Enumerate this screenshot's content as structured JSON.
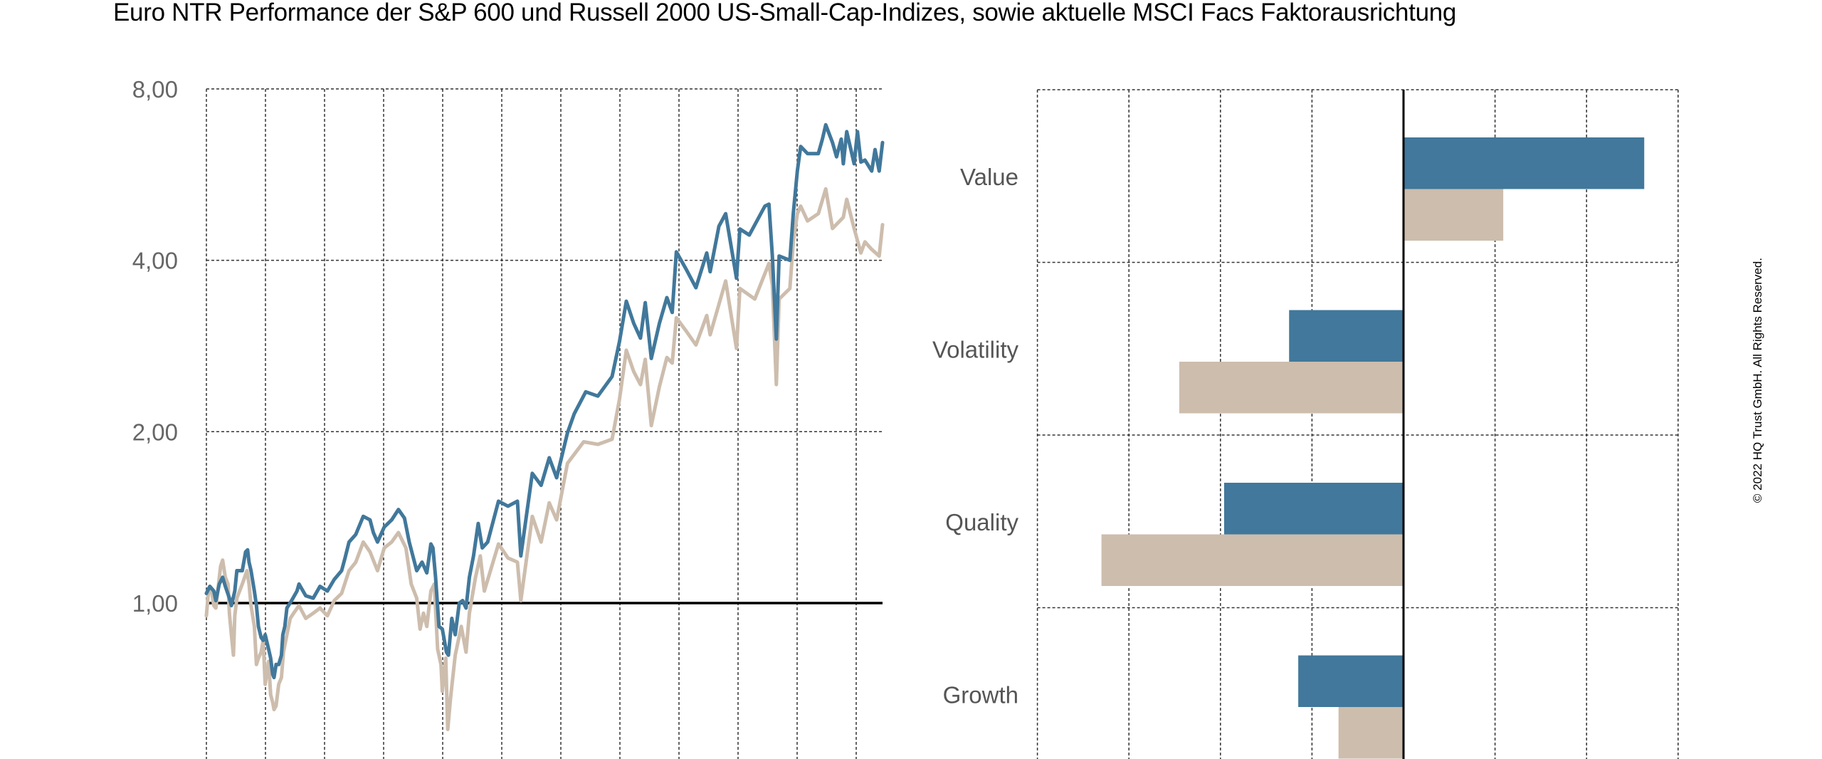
{
  "title": "Euro NTR Performance der S&P 600 und Russell 2000 US-Small-Cap-Indizes, sowie aktuelle MSCI Facs Faktorausrichtung",
  "copyright": "© 2022 HQ Trust GmbH. All Rights Reserved.",
  "colors": {
    "series_blue": "#41789b",
    "series_beige": "#cdbdad",
    "grid": "#333333",
    "baseline": "#000000",
    "label": "#666666"
  },
  "chart_data": [
    {
      "type": "line",
      "title": "",
      "xlabel": "",
      "ylabel": "",
      "yscale": "log",
      "ylim": [
        0.53,
        8.0
      ],
      "yticks": [
        1,
        2,
        4,
        8
      ],
      "ytick_labels": [
        "1,00",
        "2,00",
        "4,00",
        "8,00"
      ],
      "baseline": 1.0,
      "grid": true,
      "xgrid_divisions": 11,
      "xlim": [
        0,
        1
      ],
      "x_note": "normalized time axis; no x tick labels shown",
      "series": [
        {
          "name": "S&P 600",
          "color": "#41789b",
          "points": [
            [
              0,
              1.04
            ],
            [
              0.005,
              1.07
            ],
            [
              0.011,
              1.05
            ],
            [
              0.014,
              1.01
            ],
            [
              0.019,
              1.08
            ],
            [
              0.024,
              1.11
            ],
            [
              0.028,
              1.07
            ],
            [
              0.034,
              1.02
            ],
            [
              0.037,
              0.99
            ],
            [
              0.042,
              1.05
            ],
            [
              0.045,
              1.14
            ],
            [
              0.053,
              1.14
            ],
            [
              0.058,
              1.23
            ],
            [
              0.061,
              1.24
            ],
            [
              0.063,
              1.18
            ],
            [
              0.066,
              1.14
            ],
            [
              0.071,
              1.05
            ],
            [
              0.074,
              0.99
            ],
            [
              0.077,
              0.91
            ],
            [
              0.081,
              0.87
            ],
            [
              0.084,
              0.86
            ],
            [
              0.087,
              0.88
            ],
            [
              0.092,
              0.83
            ],
            [
              0.095,
              0.8
            ],
            [
              0.098,
              0.75
            ],
            [
              0.1,
              0.74
            ],
            [
              0.103,
              0.78
            ],
            [
              0.107,
              0.78
            ],
            [
              0.111,
              0.81
            ],
            [
              0.113,
              0.88
            ],
            [
              0.116,
              0.91
            ],
            [
              0.119,
              0.98
            ],
            [
              0.126,
              1.01
            ],
            [
              0.134,
              1.05
            ],
            [
              0.137,
              1.08
            ],
            [
              0.147,
              1.03
            ],
            [
              0.158,
              1.02
            ],
            [
              0.168,
              1.07
            ],
            [
              0.179,
              1.05
            ],
            [
              0.189,
              1.1
            ],
            [
              0.2,
              1.14
            ],
            [
              0.205,
              1.2
            ],
            [
              0.211,
              1.28
            ],
            [
              0.221,
              1.32
            ],
            [
              0.232,
              1.42
            ],
            [
              0.242,
              1.4
            ],
            [
              0.247,
              1.33
            ],
            [
              0.253,
              1.28
            ],
            [
              0.263,
              1.36
            ],
            [
              0.274,
              1.4
            ],
            [
              0.284,
              1.46
            ],
            [
              0.293,
              1.41
            ],
            [
              0.3,
              1.28
            ],
            [
              0.311,
              1.14
            ],
            [
              0.319,
              1.18
            ],
            [
              0.326,
              1.13
            ],
            [
              0.332,
              1.27
            ],
            [
              0.335,
              1.25
            ],
            [
              0.339,
              1.11
            ],
            [
              0.344,
              0.91
            ],
            [
              0.349,
              0.9
            ],
            [
              0.355,
              0.82
            ],
            [
              0.358,
              0.81
            ],
            [
              0.363,
              0.94
            ],
            [
              0.368,
              0.88
            ],
            [
              0.374,
              1.0
            ],
            [
              0.379,
              1.01
            ],
            [
              0.384,
              0.98
            ],
            [
              0.389,
              1.11
            ],
            [
              0.395,
              1.21
            ],
            [
              0.402,
              1.38
            ],
            [
              0.408,
              1.25
            ],
            [
              0.416,
              1.28
            ],
            [
              0.432,
              1.51
            ],
            [
              0.446,
              1.48
            ],
            [
              0.46,
              1.51
            ],
            [
              0.465,
              1.21
            ],
            [
              0.482,
              1.69
            ],
            [
              0.495,
              1.61
            ],
            [
              0.507,
              1.8
            ],
            [
              0.518,
              1.66
            ],
            [
              0.534,
              1.99
            ],
            [
              0.544,
              2.15
            ],
            [
              0.561,
              2.35
            ],
            [
              0.579,
              2.31
            ],
            [
              0.6,
              2.5
            ],
            [
              0.611,
              2.88
            ],
            [
              0.621,
              3.39
            ],
            [
              0.632,
              3.1
            ],
            [
              0.642,
              2.92
            ],
            [
              0.649,
              3.37
            ],
            [
              0.658,
              2.69
            ],
            [
              0.67,
              3.1
            ],
            [
              0.681,
              3.44
            ],
            [
              0.689,
              3.24
            ],
            [
              0.695,
              4.14
            ],
            [
              0.71,
              3.85
            ],
            [
              0.724,
              3.58
            ],
            [
              0.74,
              4.12
            ],
            [
              0.745,
              3.82
            ],
            [
              0.758,
              4.59
            ],
            [
              0.768,
              4.83
            ],
            [
              0.784,
              3.72
            ],
            [
              0.789,
              4.54
            ],
            [
              0.803,
              4.43
            ],
            [
              0.826,
              4.98
            ],
            [
              0.832,
              5.02
            ],
            [
              0.837,
              4.07
            ],
            [
              0.843,
              2.91
            ],
            [
              0.847,
              4.07
            ],
            [
              0.863,
              4.0
            ],
            [
              0.868,
              4.83
            ],
            [
              0.874,
              5.74
            ],
            [
              0.879,
              6.34
            ],
            [
              0.889,
              6.16
            ],
            [
              0.905,
              6.16
            ],
            [
              0.911,
              6.53
            ],
            [
              0.916,
              6.92
            ],
            [
              0.926,
              6.44
            ],
            [
              0.932,
              6.08
            ],
            [
              0.939,
              6.53
            ],
            [
              0.942,
              5.91
            ],
            [
              0.947,
              6.73
            ],
            [
              0.958,
              5.91
            ],
            [
              0.963,
              6.73
            ],
            [
              0.968,
              5.95
            ],
            [
              0.974,
              6.0
            ],
            [
              0.984,
              5.74
            ],
            [
              0.989,
              6.26
            ],
            [
              0.995,
              5.74
            ],
            [
              1.0,
              6.44
            ]
          ]
        },
        {
          "name": "Russell 2000",
          "color": "#cdbdad",
          "points": [
            [
              0,
              0.95
            ],
            [
              0.003,
              1.05
            ],
            [
              0.007,
              1.06
            ],
            [
              0.011,
              0.99
            ],
            [
              0.014,
              0.98
            ],
            [
              0.018,
              1.08
            ],
            [
              0.021,
              1.16
            ],
            [
              0.024,
              1.19
            ],
            [
              0.028,
              1.11
            ],
            [
              0.032,
              1.08
            ],
            [
              0.034,
              0.96
            ],
            [
              0.037,
              0.88
            ],
            [
              0.04,
              0.81
            ],
            [
              0.042,
              0.95
            ],
            [
              0.045,
              1.02
            ],
            [
              0.053,
              1.08
            ],
            [
              0.06,
              1.14
            ],
            [
              0.063,
              1.08
            ],
            [
              0.066,
              0.99
            ],
            [
              0.071,
              0.91
            ],
            [
              0.074,
              0.78
            ],
            [
              0.077,
              0.8
            ],
            [
              0.081,
              0.82
            ],
            [
              0.084,
              0.86
            ],
            [
              0.087,
              0.72
            ],
            [
              0.092,
              0.79
            ],
            [
              0.095,
              0.69
            ],
            [
              0.098,
              0.67
            ],
            [
              0.1,
              0.65
            ],
            [
              0.103,
              0.66
            ],
            [
              0.107,
              0.72
            ],
            [
              0.111,
              0.74
            ],
            [
              0.114,
              0.82
            ],
            [
              0.119,
              0.88
            ],
            [
              0.124,
              0.94
            ],
            [
              0.129,
              0.96
            ],
            [
              0.137,
              0.99
            ],
            [
              0.147,
              0.94
            ],
            [
              0.158,
              0.96
            ],
            [
              0.168,
              0.98
            ],
            [
              0.179,
              0.95
            ],
            [
              0.189,
              1.01
            ],
            [
              0.2,
              1.04
            ],
            [
              0.211,
              1.14
            ],
            [
              0.221,
              1.18
            ],
            [
              0.232,
              1.28
            ],
            [
              0.242,
              1.23
            ],
            [
              0.253,
              1.14
            ],
            [
              0.263,
              1.25
            ],
            [
              0.274,
              1.28
            ],
            [
              0.284,
              1.33
            ],
            [
              0.295,
              1.25
            ],
            [
              0.303,
              1.08
            ],
            [
              0.311,
              1.02
            ],
            [
              0.316,
              0.9
            ],
            [
              0.321,
              0.96
            ],
            [
              0.326,
              0.91
            ],
            [
              0.332,
              1.05
            ],
            [
              0.337,
              1.08
            ],
            [
              0.342,
              0.83
            ],
            [
              0.347,
              0.78
            ],
            [
              0.349,
              0.7
            ],
            [
              0.354,
              0.8
            ],
            [
              0.357,
              0.6
            ],
            [
              0.361,
              0.68
            ],
            [
              0.368,
              0.81
            ],
            [
              0.377,
              0.91
            ],
            [
              0.384,
              0.82
            ],
            [
              0.389,
              0.96
            ],
            [
              0.398,
              1.11
            ],
            [
              0.405,
              1.21
            ],
            [
              0.411,
              1.05
            ],
            [
              0.432,
              1.27
            ],
            [
              0.446,
              1.2
            ],
            [
              0.46,
              1.18
            ],
            [
              0.465,
              1.01
            ],
            [
              0.482,
              1.42
            ],
            [
              0.495,
              1.28
            ],
            [
              0.507,
              1.5
            ],
            [
              0.518,
              1.4
            ],
            [
              0.534,
              1.76
            ],
            [
              0.558,
              1.92
            ],
            [
              0.579,
              1.9
            ],
            [
              0.6,
              1.94
            ],
            [
              0.611,
              2.28
            ],
            [
              0.621,
              2.78
            ],
            [
              0.632,
              2.55
            ],
            [
              0.642,
              2.42
            ],
            [
              0.649,
              2.68
            ],
            [
              0.658,
              2.05
            ],
            [
              0.67,
              2.4
            ],
            [
              0.681,
              2.7
            ],
            [
              0.689,
              2.64
            ],
            [
              0.695,
              3.17
            ],
            [
              0.71,
              3.0
            ],
            [
              0.724,
              2.84
            ],
            [
              0.74,
              3.2
            ],
            [
              0.745,
              2.96
            ],
            [
              0.768,
              3.68
            ],
            [
              0.784,
              2.8
            ],
            [
              0.789,
              3.57
            ],
            [
              0.811,
              3.42
            ],
            [
              0.832,
              3.95
            ],
            [
              0.837,
              3.62
            ],
            [
              0.843,
              2.42
            ],
            [
              0.847,
              3.42
            ],
            [
              0.863,
              3.57
            ],
            [
              0.868,
              4.31
            ],
            [
              0.874,
              4.83
            ],
            [
              0.879,
              4.98
            ],
            [
              0.889,
              4.69
            ],
            [
              0.905,
              4.83
            ],
            [
              0.916,
              5.34
            ],
            [
              0.926,
              4.55
            ],
            [
              0.942,
              4.76
            ],
            [
              0.947,
              5.12
            ],
            [
              0.958,
              4.55
            ],
            [
              0.968,
              4.12
            ],
            [
              0.974,
              4.31
            ],
            [
              0.984,
              4.18
            ],
            [
              0.995,
              4.07
            ],
            [
              1.0,
              4.62
            ]
          ]
        }
      ]
    },
    {
      "type": "bar",
      "orientation": "horizontal",
      "title": "",
      "xlabel": "",
      "ylabel": "",
      "xlim": [
        -4,
        3
      ],
      "x_gridstep": 1,
      "x_note": "no tick labels shown; values estimated in grid units",
      "grid": true,
      "categories": [
        "Value",
        "Volatility",
        "Quality",
        "Growth"
      ],
      "series": [
        {
          "name": "S&P 600",
          "color": "#41789b",
          "values": [
            2.63,
            -1.25,
            -1.96,
            -1.15
          ]
        },
        {
          "name": "Russell 2000",
          "color": "#cdbdad",
          "values": [
            1.09,
            -2.45,
            -3.3,
            -0.71
          ]
        }
      ]
    }
  ]
}
